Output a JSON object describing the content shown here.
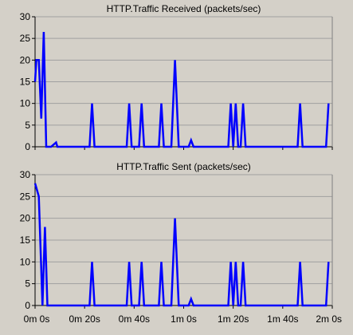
{
  "chart_data": [
    {
      "type": "line",
      "title": "HTTP.Traffic Received (packets/sec)",
      "xlabel": "",
      "ylabel": "",
      "ylim": [
        0,
        30
      ],
      "xlim": [
        0,
        120
      ],
      "x_ticks": [
        0,
        20,
        40,
        60,
        80,
        100,
        120
      ],
      "x_tick_labels": [
        "0m 0s",
        "0m 20s",
        "0m 40s",
        "1m 0s",
        "1m 20s",
        "1m 40s",
        "2m 0s"
      ],
      "y_ticks": [
        0,
        5,
        10,
        15,
        20,
        25,
        30
      ],
      "y_tick_labels": [
        "0",
        "5",
        "10",
        "15",
        "20",
        "25",
        "30"
      ],
      "grid": true,
      "legend": "none",
      "color": "#0000ff",
      "series": [
        {
          "x": [
            0,
            0.5,
            1.5,
            2.5,
            3.5,
            4.5,
            6,
            6.5,
            8.5,
            9,
            9.5,
            10,
            10.5,
            22,
            23,
            24,
            37,
            38,
            39,
            42,
            43,
            44,
            50,
            51,
            52,
            55,
            56.5,
            58,
            62,
            63,
            64,
            65,
            66,
            67,
            78,
            79,
            80,
            81,
            82,
            83,
            84,
            85,
            86,
            106,
            107,
            108,
            117.5,
            118.5
          ],
          "y": [
            15,
            20,
            20,
            6.5,
            26.5,
            0,
            0,
            0,
            1,
            0,
            0,
            0,
            0,
            0,
            10,
            0,
            0,
            10,
            0,
            0,
            10,
            0,
            0,
            10,
            0,
            0,
            20,
            0,
            0,
            1.5,
            0,
            0,
            0,
            0,
            0,
            10,
            0,
            10,
            0,
            0,
            10,
            0,
            0,
            0,
            10,
            0,
            0,
            10
          ]
        }
      ]
    },
    {
      "type": "line",
      "title": "HTTP.Traffic Sent (packets/sec)",
      "xlabel": "",
      "ylabel": "",
      "ylim": [
        0,
        30
      ],
      "xlim": [
        0,
        120
      ],
      "x_ticks": [
        0,
        20,
        40,
        60,
        80,
        100,
        120
      ],
      "x_tick_labels": [
        "0m 0s",
        "0m 20s",
        "0m 40s",
        "1m 0s",
        "1m 20s",
        "1m 40s",
        "2m 0s"
      ],
      "y_ticks": [
        0,
        5,
        10,
        15,
        20,
        25,
        30
      ],
      "y_tick_labels": [
        "0",
        "5",
        "10",
        "15",
        "20",
        "25",
        "30"
      ],
      "grid": true,
      "legend": "none",
      "color": "#0000ff",
      "series": [
        {
          "x": [
            0,
            0.5,
            1.5,
            3,
            4,
            5,
            6,
            22,
            23,
            24,
            37,
            38,
            39,
            42,
            43,
            44,
            50,
            51,
            52,
            55,
            56.5,
            58,
            62,
            63,
            64,
            65,
            66,
            67,
            78,
            79,
            80,
            81,
            82,
            83,
            84,
            85,
            86,
            106,
            107,
            108,
            117.5,
            118.5
          ],
          "y": [
            28,
            27,
            25,
            0,
            18,
            0,
            0,
            0,
            10,
            0,
            0,
            10,
            0,
            0,
            10,
            0,
            0,
            10,
            0,
            0,
            20,
            0,
            0,
            1.5,
            0,
            0,
            0,
            0,
            0,
            10,
            0,
            10,
            0,
            0,
            10,
            0,
            0,
            0,
            10,
            0,
            0,
            10
          ]
        }
      ]
    }
  ]
}
